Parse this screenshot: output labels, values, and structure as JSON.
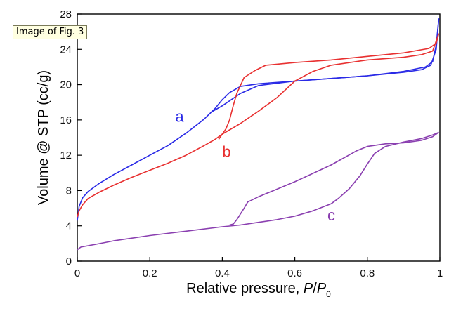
{
  "tooltip": "Image of Fig. 3",
  "chart_data": {
    "type": "line",
    "xlabel_text": "Relative pressure, ",
    "xlabel_italic": "P",
    "xlabel_slash": "/",
    "xlabel_italic2": "P",
    "xlabel_sub": "0",
    "ylabel": "Volume @ STP (cc/g)",
    "xlim": [
      0,
      1
    ],
    "ylim": [
      0,
      28
    ],
    "x_ticks": [
      0,
      0.2,
      0.4,
      0.6,
      0.8,
      1
    ],
    "x_tick_labels": [
      "0",
      "0.2",
      "0.4",
      "0.6",
      "0.8",
      "1"
    ],
    "y_ticks": [
      0,
      4,
      8,
      12,
      16,
      20,
      24,
      28
    ],
    "y_tick_labels": [
      "0",
      "4",
      "8",
      "12",
      "16",
      "20",
      "24",
      "28"
    ],
    "grid": false,
    "series": [
      {
        "name": "a",
        "color": "#2a2ae6",
        "label_at": [
          0.27,
          15.8
        ],
        "adsorption": [
          [
            0,
            4.6
          ],
          [
            0.005,
            6.2
          ],
          [
            0.015,
            7.2
          ],
          [
            0.03,
            7.9
          ],
          [
            0.06,
            8.8
          ],
          [
            0.1,
            9.8
          ],
          [
            0.15,
            10.9
          ],
          [
            0.2,
            12.0
          ],
          [
            0.25,
            13.1
          ],
          [
            0.3,
            14.5
          ],
          [
            0.35,
            16.1
          ],
          [
            0.38,
            17.3
          ],
          [
            0.4,
            18.3
          ],
          [
            0.42,
            19.1
          ],
          [
            0.45,
            19.8
          ],
          [
            0.5,
            20.1
          ],
          [
            0.6,
            20.4
          ],
          [
            0.7,
            20.7
          ],
          [
            0.8,
            21.0
          ],
          [
            0.9,
            21.4
          ],
          [
            0.95,
            21.7
          ],
          [
            0.975,
            22.2
          ],
          [
            0.99,
            24.0
          ],
          [
            0.997,
            27.5
          ]
        ],
        "desorption": [
          [
            0.997,
            27.5
          ],
          [
            0.99,
            24.5
          ],
          [
            0.98,
            22.6
          ],
          [
            0.96,
            22.0
          ],
          [
            0.9,
            21.5
          ],
          [
            0.8,
            21.0
          ],
          [
            0.7,
            20.7
          ],
          [
            0.6,
            20.4
          ],
          [
            0.5,
            19.9
          ],
          [
            0.45,
            19.0
          ],
          [
            0.4,
            17.6
          ],
          [
            0.37,
            16.9
          ]
        ]
      },
      {
        "name": "b",
        "color": "#e83030",
        "label_at": [
          0.4,
          11.8
        ],
        "adsorption": [
          [
            0,
            5.0
          ],
          [
            0.005,
            5.7
          ],
          [
            0.015,
            6.4
          ],
          [
            0.03,
            7.1
          ],
          [
            0.06,
            7.8
          ],
          [
            0.1,
            8.6
          ],
          [
            0.15,
            9.5
          ],
          [
            0.2,
            10.3
          ],
          [
            0.25,
            11.1
          ],
          [
            0.3,
            12.0
          ],
          [
            0.35,
            13.1
          ],
          [
            0.38,
            13.8
          ],
          [
            0.4,
            14.4
          ],
          [
            0.45,
            15.6
          ],
          [
            0.5,
            17.0
          ],
          [
            0.55,
            18.5
          ],
          [
            0.6,
            20.4
          ],
          [
            0.65,
            21.5
          ],
          [
            0.7,
            22.2
          ],
          [
            0.8,
            22.8
          ],
          [
            0.9,
            23.1
          ],
          [
            0.95,
            23.4
          ],
          [
            0.98,
            23.8
          ],
          [
            0.997,
            25.8
          ]
        ],
        "desorption": [
          [
            0.997,
            25.8
          ],
          [
            0.99,
            24.7
          ],
          [
            0.97,
            24.1
          ],
          [
            0.9,
            23.6
          ],
          [
            0.8,
            23.2
          ],
          [
            0.7,
            22.8
          ],
          [
            0.6,
            22.5
          ],
          [
            0.52,
            22.2
          ],
          [
            0.49,
            21.6
          ],
          [
            0.46,
            20.8
          ],
          [
            0.44,
            19.0
          ],
          [
            0.43,
            17.6
          ],
          [
            0.42,
            16.0
          ],
          [
            0.41,
            15.0
          ],
          [
            0.39,
            13.8
          ]
        ]
      },
      {
        "name": "c",
        "color": "#8a3fb0",
        "label_at": [
          0.69,
          4.6
        ],
        "adsorption": [
          [
            0,
            1.3
          ],
          [
            0.01,
            1.6
          ],
          [
            0.05,
            1.9
          ],
          [
            0.1,
            2.3
          ],
          [
            0.2,
            2.9
          ],
          [
            0.3,
            3.4
          ],
          [
            0.4,
            3.9
          ],
          [
            0.45,
            4.1
          ],
          [
            0.5,
            4.4
          ],
          [
            0.55,
            4.7
          ],
          [
            0.6,
            5.1
          ],
          [
            0.65,
            5.7
          ],
          [
            0.7,
            6.5
          ],
          [
            0.72,
            7.1
          ],
          [
            0.75,
            8.2
          ],
          [
            0.78,
            9.7
          ],
          [
            0.8,
            11.0
          ],
          [
            0.82,
            12.2
          ],
          [
            0.85,
            13.0
          ],
          [
            0.9,
            13.5
          ],
          [
            0.95,
            13.9
          ],
          [
            0.98,
            14.3
          ],
          [
            0.997,
            14.6
          ]
        ],
        "desorption": [
          [
            0.997,
            14.6
          ],
          [
            0.98,
            14.1
          ],
          [
            0.95,
            13.7
          ],
          [
            0.9,
            13.4
          ],
          [
            0.85,
            13.3
          ],
          [
            0.8,
            13.0
          ],
          [
            0.77,
            12.5
          ],
          [
            0.7,
            10.9
          ],
          [
            0.6,
            9.0
          ],
          [
            0.5,
            7.3
          ],
          [
            0.47,
            6.7
          ],
          [
            0.46,
            6.0
          ],
          [
            0.44,
            4.7
          ],
          [
            0.43,
            4.2
          ],
          [
            0.42,
            4.1
          ]
        ]
      }
    ]
  }
}
